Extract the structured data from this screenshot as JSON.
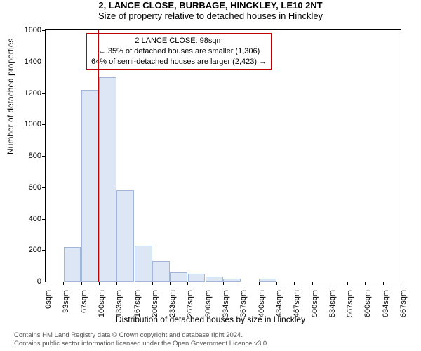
{
  "title": "2, LANCE CLOSE, BURBAGE, HINCKLEY, LE10 2NT",
  "subtitle": "Size of property relative to detached houses in Hinckley",
  "y_axis_label": "Number of detached properties",
  "x_axis_label": "Distribution of detached houses by size in Hinckley",
  "chart": {
    "type": "histogram",
    "background_color": "#ffffff",
    "axis_color": "#000000",
    "bar_fill": "#dce6f4",
    "bar_stroke": "#9fb6d9",
    "ylim": [
      0,
      1600
    ],
    "ytick_step": 200,
    "yticks": [
      0,
      200,
      400,
      600,
      800,
      1000,
      1200,
      1400,
      1600
    ],
    "x_tick_labels": [
      "0sqm",
      "33sqm",
      "67sqm",
      "100sqm",
      "133sqm",
      "167sqm",
      "200sqm",
      "233sqm",
      "267sqm",
      "300sqm",
      "334sqm",
      "367sqm",
      "400sqm",
      "434sqm",
      "467sqm",
      "500sqm",
      "534sqm",
      "567sqm",
      "600sqm",
      "634sqm",
      "667sqm"
    ],
    "bars": [
      0,
      220,
      1220,
      1300,
      580,
      230,
      130,
      60,
      50,
      30,
      20,
      0,
      20,
      0,
      0,
      0,
      0,
      0,
      0,
      0
    ],
    "bar_width_ratio": 0.98,
    "marker": {
      "position_sqm": 98,
      "color": "#c00000"
    }
  },
  "annotation": {
    "line1": "2 LANCE CLOSE: 98sqm",
    "line2": "← 35% of detached houses are smaller (1,306)",
    "line3": "64% of semi-detached houses are larger (2,423) →",
    "border_color": "#c00000",
    "background": "#ffffff",
    "font_size": 11
  },
  "footer": {
    "line1": "Contains HM Land Registry data © Crown copyright and database right 2024.",
    "line2": "Contains public sector information licensed under the Open Government Licence v3.0."
  }
}
